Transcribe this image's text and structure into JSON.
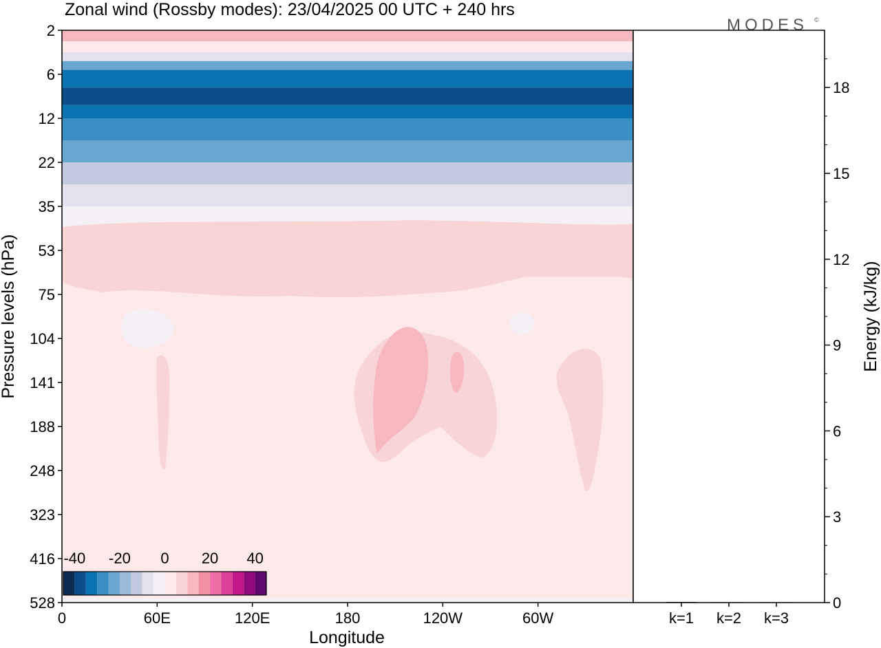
{
  "title": "Zonal wind (Rossby modes):  23/04/2025  00 UTC  + 240 hrs",
  "logo": "MODES",
  "logo_mark": "©",
  "chart_data": [
    {
      "type": "heatmap",
      "name": "zonal-wind-cross-section",
      "xlabel": "Longitude",
      "ylabel": "Pressure levels (hPa)",
      "x_ticks": [
        "0",
        "60E",
        "120E",
        "180",
        "120W",
        "60W"
      ],
      "x_tick_values": [
        0,
        60,
        120,
        180,
        240,
        300
      ],
      "xlim": [
        0,
        360
      ],
      "y_ticks": [
        "2",
        "6",
        "12",
        "22",
        "35",
        "53",
        "75",
        "104",
        "141",
        "188",
        "248",
        "323",
        "416",
        "528"
      ],
      "y_scale": "model levels (top to bottom)",
      "colorbar": {
        "tick_labels": [
          "-40",
          "-20",
          "0",
          "20",
          "40"
        ],
        "tick_values": [
          -40,
          -20,
          0,
          20,
          40
        ],
        "levels": [
          -45,
          -40,
          -35,
          -30,
          -25,
          -20,
          -15,
          -10,
          -5,
          0,
          5,
          10,
          15,
          20,
          25,
          30,
          35,
          40,
          45
        ],
        "colors": [
          "#0d2b4e",
          "#0b4d8a",
          "#0a72b0",
          "#3a8fc4",
          "#6aa7d0",
          "#9bbadb",
          "#c2cae0",
          "#e3e1ee",
          "#f4f0f6",
          "#fde9e9",
          "#f9d4d5",
          "#f6b8be",
          "#f28fa3",
          "#ee6ea6",
          "#de3f9b",
          "#c2188a",
          "#8e0a7d",
          "#5c086d"
        ]
      },
      "bands": [
        {
          "level": "2",
          "value": 12
        },
        {
          "level": "3",
          "value": 4
        },
        {
          "level": "4",
          "value": -6
        },
        {
          "level": "5",
          "value": -25
        },
        {
          "level": "6",
          "value": -35
        },
        {
          "level": "8",
          "value": -40
        },
        {
          "level": "10",
          "value": -35
        },
        {
          "level": "12",
          "value": -30
        },
        {
          "level": "15",
          "value": -25
        },
        {
          "level": "22",
          "value": -15
        },
        {
          "level": "28",
          "value": -8
        },
        {
          "level": "35",
          "value": -2
        },
        {
          "level": "45",
          "value": 3
        },
        {
          "level": "53",
          "value": 8
        },
        {
          "level": "75",
          "value": 3
        },
        {
          "level": "104-416",
          "value": 2
        },
        {
          "level": "528",
          "value": -1
        }
      ]
    },
    {
      "type": "bar",
      "name": "energy-bars",
      "categories": [
        "k=1",
        "k=2",
        "k=3"
      ],
      "values": [
        0.02,
        0.01,
        0.01
      ],
      "ylabel": "Energy (kJ/kg)",
      "y_ticks": [
        "0",
        "3",
        "6",
        "9",
        "12",
        "15",
        "18"
      ],
      "ylim": [
        0,
        20
      ]
    }
  ]
}
